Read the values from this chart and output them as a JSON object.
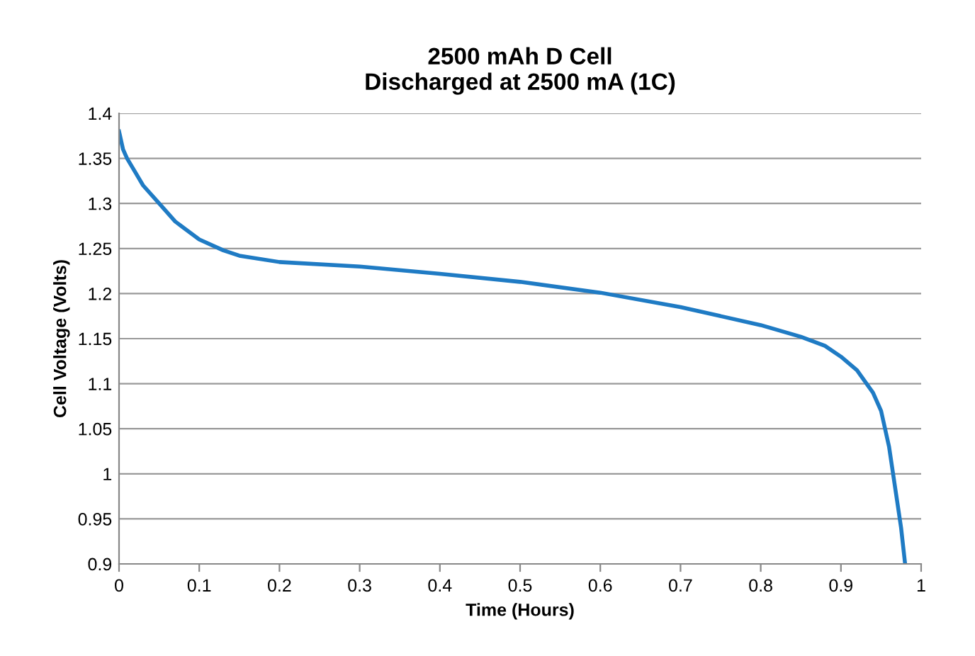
{
  "chart_data": {
    "type": "line",
    "title": "2500 mAh D Cell\nDischarged at 2500 mA (1C)",
    "xlabel": "Time (Hours)",
    "ylabel": "Cell Voltage (Volts)",
    "x": [
      0,
      0.005,
      0.01,
      0.02,
      0.03,
      0.05,
      0.07,
      0.1,
      0.13,
      0.15,
      0.2,
      0.3,
      0.4,
      0.5,
      0.6,
      0.7,
      0.8,
      0.85,
      0.88,
      0.9,
      0.92,
      0.94,
      0.95,
      0.96,
      0.97,
      0.975,
      0.98
    ],
    "series": [
      {
        "color": "#1f7bc4",
        "values": [
          1.38,
          1.36,
          1.35,
          1.335,
          1.32,
          1.3,
          1.28,
          1.26,
          1.248,
          1.242,
          1.235,
          1.23,
          1.222,
          1.213,
          1.201,
          1.185,
          1.165,
          1.152,
          1.142,
          1.13,
          1.115,
          1.09,
          1.07,
          1.03,
          0.97,
          0.94,
          0.9
        ]
      }
    ],
    "xlim": [
      0,
      1
    ],
    "xticks": [
      0,
      0.1,
      0.2,
      0.3,
      0.4,
      0.5,
      0.6,
      0.7,
      0.8,
      0.9,
      1
    ],
    "ylim": [
      0.9,
      1.4
    ],
    "yticks": [
      0.9,
      0.95,
      1,
      1.05,
      1.1,
      1.15,
      1.2,
      1.25,
      1.3,
      1.35,
      1.4
    ],
    "grid": "y",
    "line_style": "solid",
    "marker": "none"
  }
}
